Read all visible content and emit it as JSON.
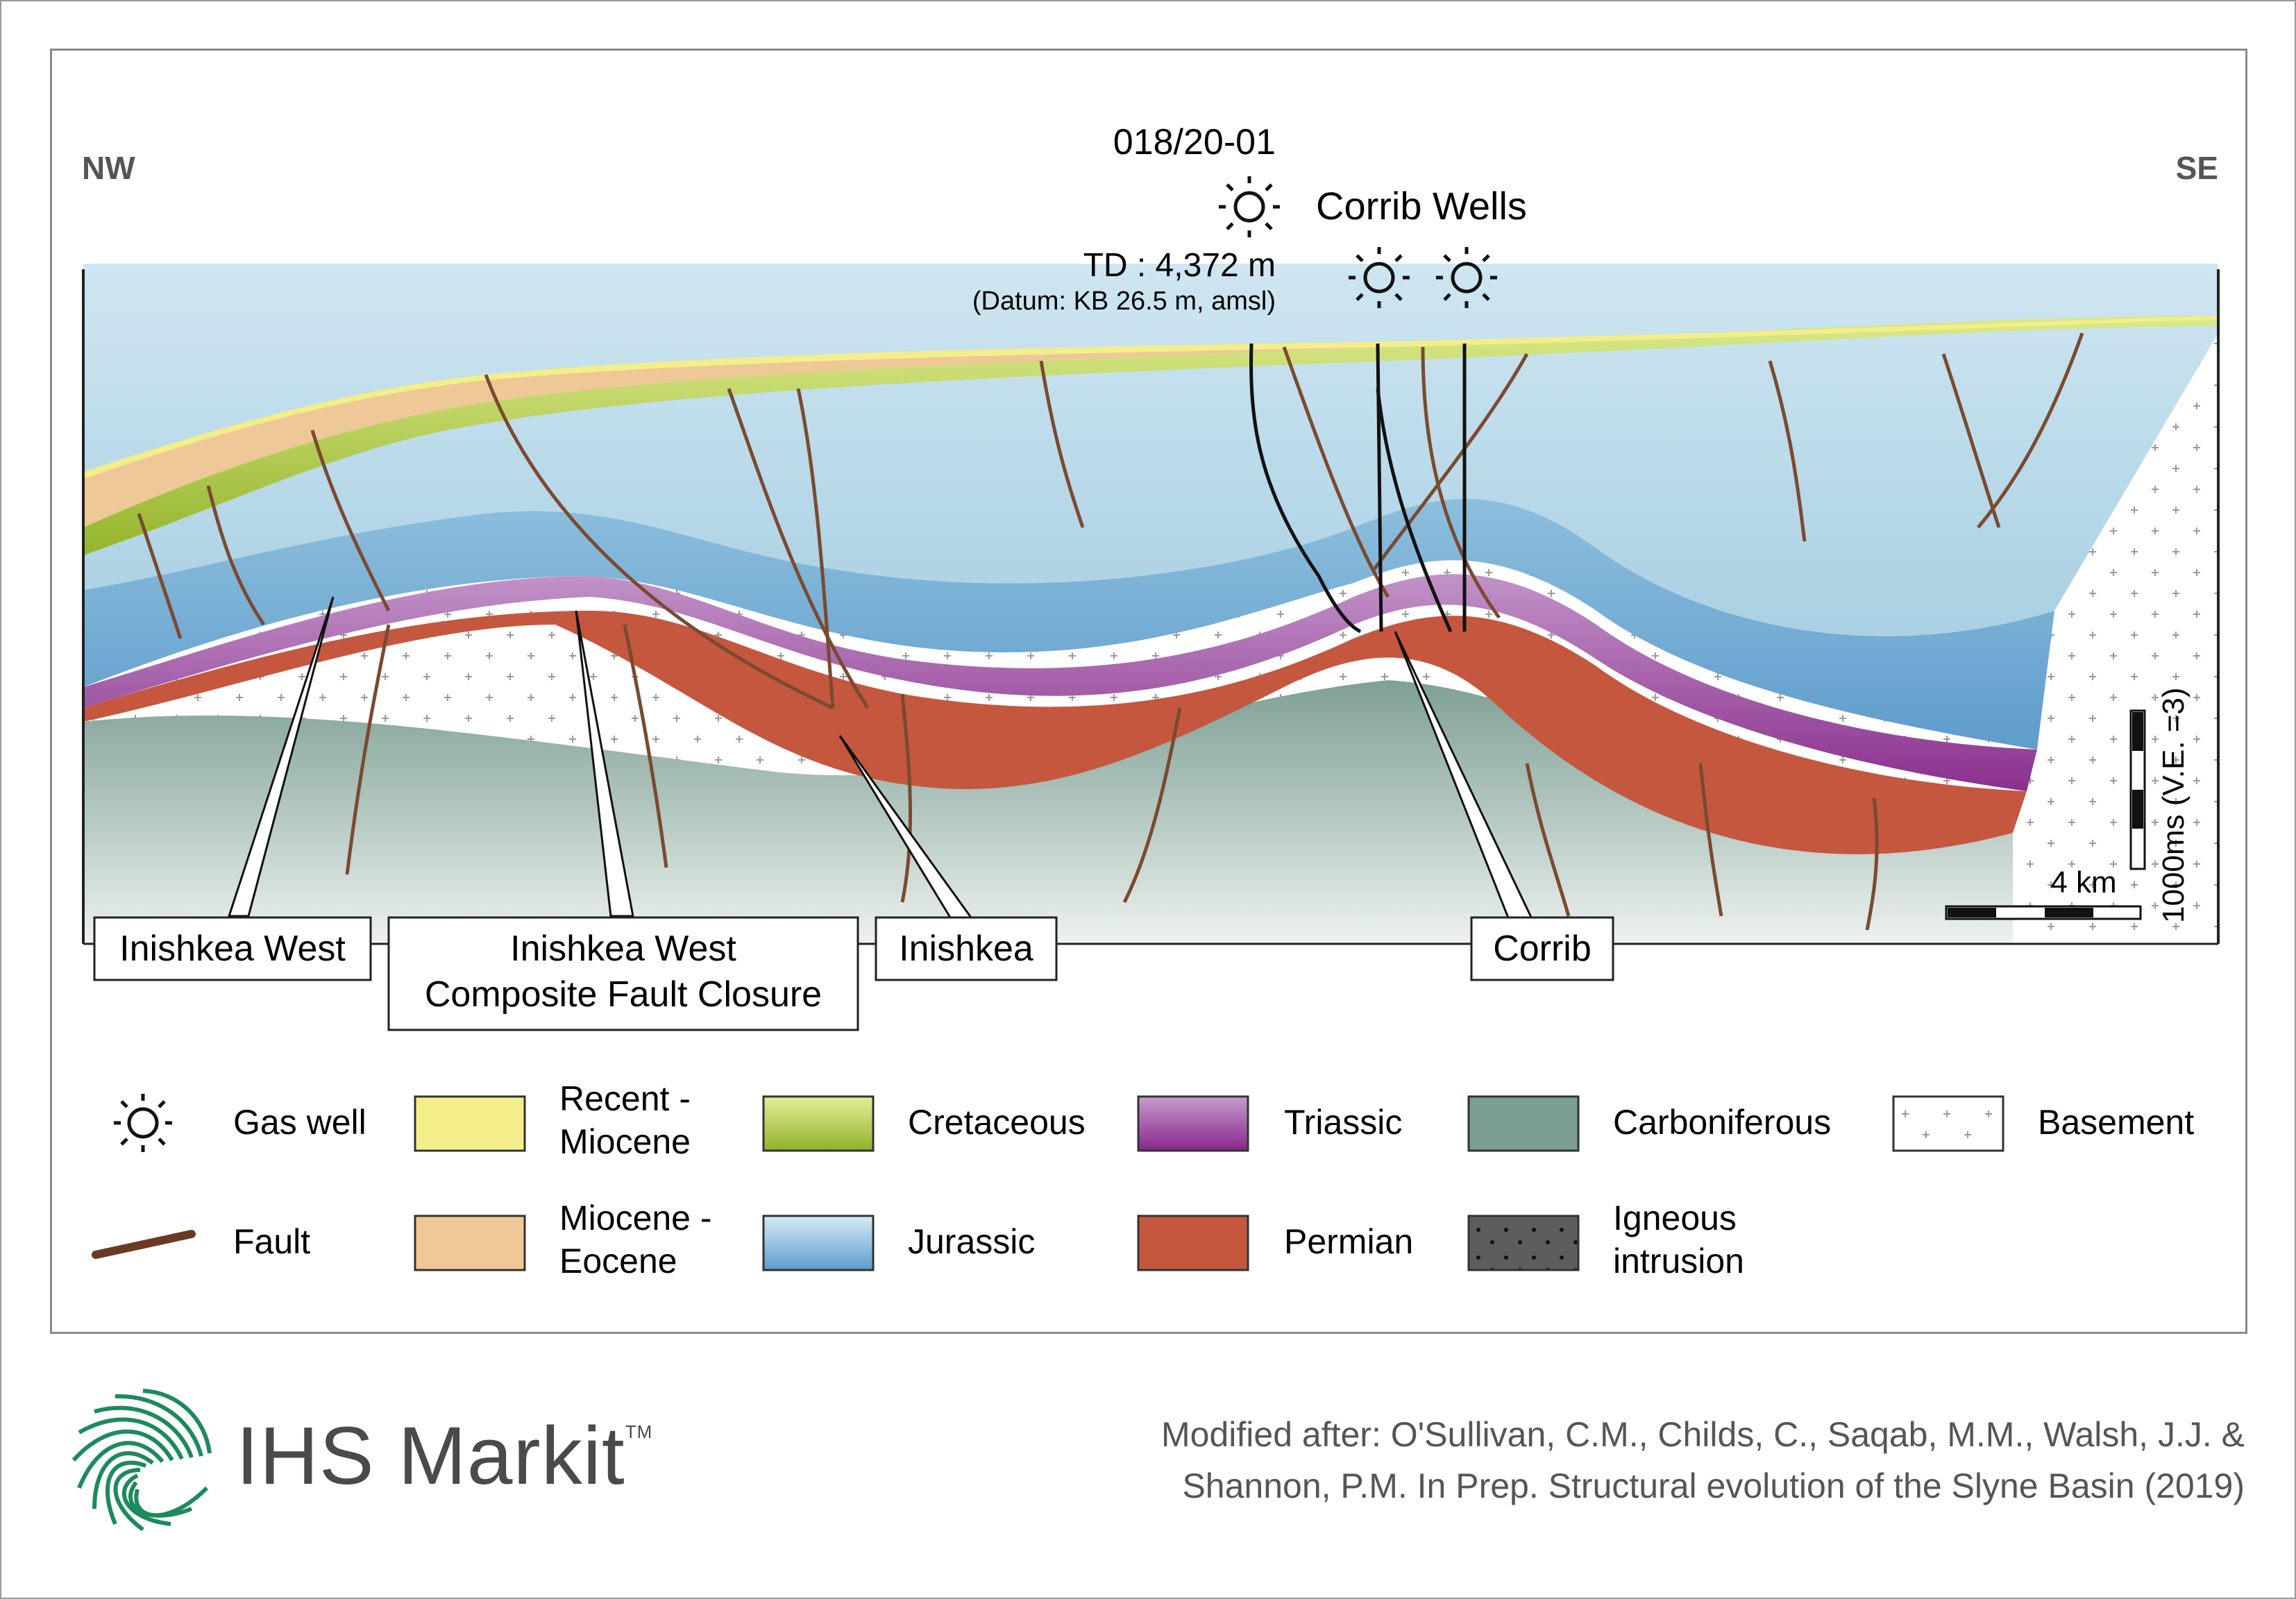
{
  "orientation": {
    "left": "NW",
    "right": "SE"
  },
  "wells": {
    "primary_name": "018/20-01",
    "td": "TD : 4,372 m",
    "datum": "(Datum: KB 26.5 m, amsl)",
    "group_name": "Corrib Wells"
  },
  "callouts": {
    "inishkea_west": "Inishkea West",
    "composite_line1": "Inishkea West",
    "composite_line2": "Composite Fault Closure",
    "inishkea": "Inishkea",
    "corrib": "Corrib"
  },
  "scale": {
    "horizontal": "4 km",
    "vertical": "1000ms (V.E. =3)"
  },
  "legend": [
    {
      "key": "gas_well",
      "label": "Gas well",
      "icon": "gas-well-icon"
    },
    {
      "key": "recent_miocene",
      "label": "Recent -\nMiocene",
      "color": "#f3ee8a"
    },
    {
      "key": "cretaceous",
      "label": "Cretaceous",
      "color": "#b5cf43"
    },
    {
      "key": "triassic",
      "label": "Triassic",
      "color": "#9b4aa6"
    },
    {
      "key": "carboniferous",
      "label": "Carboniferous",
      "color": "#7a9e92"
    },
    {
      "key": "basement",
      "label": "Basement",
      "pattern": "crosses"
    },
    {
      "key": "fault",
      "label": "Fault",
      "color": "#6b3a23"
    },
    {
      "key": "miocene_eocene",
      "label": "Miocene -\nEocene",
      "color": "#eec897"
    },
    {
      "key": "jurassic",
      "label": "Jurassic",
      "color": "#8fc0dc"
    },
    {
      "key": "permian",
      "label": "Permian",
      "color": "#c5573f"
    },
    {
      "key": "igneous",
      "label": "Igneous\nintrusion",
      "pattern": "dots"
    }
  ],
  "logo": {
    "brand": "IHS Markit",
    "tm": "TM"
  },
  "citation": {
    "line1": "Modified after:  O'Sullivan, C.M., Childs, C., Saqab, M.M., Walsh, J.J. &",
    "line2": "Shannon, P.M. In Prep. Structural evolution of the Slyne Basin (2019)"
  }
}
